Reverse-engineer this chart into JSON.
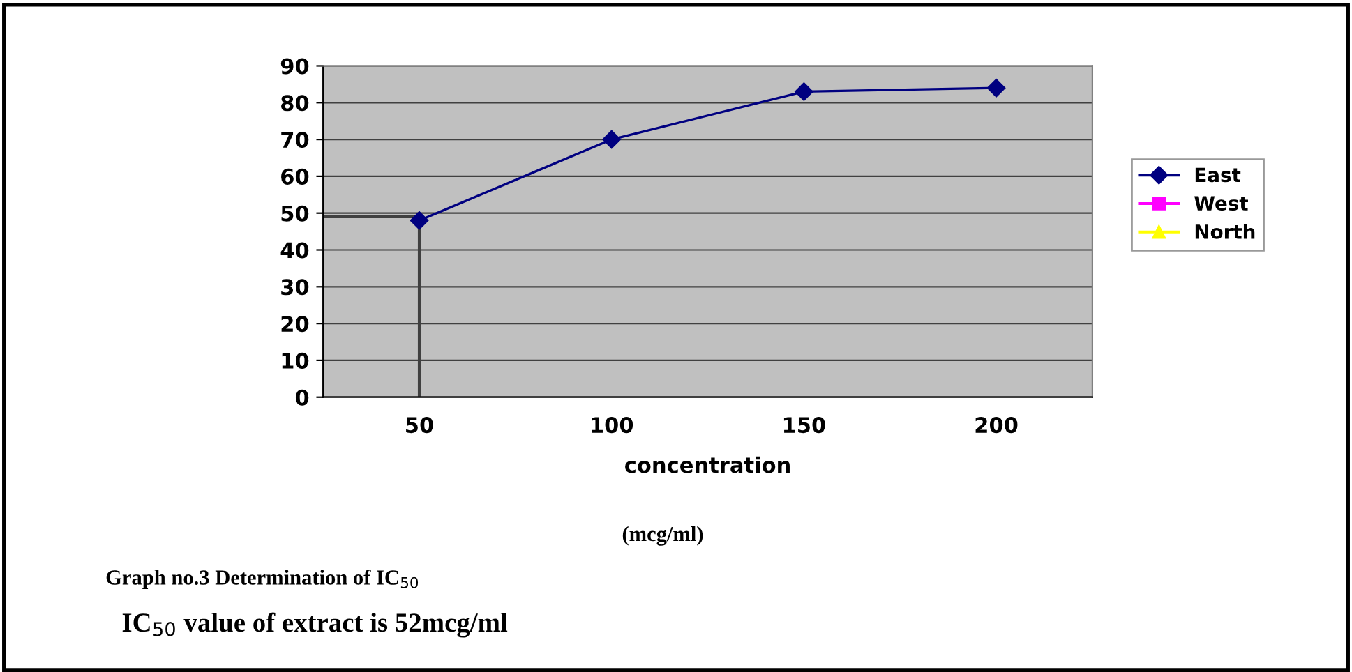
{
  "chart_data": {
    "type": "line",
    "xlabel": "concentration",
    "categories": [
      "50",
      "100",
      "150",
      "200"
    ],
    "series": [
      {
        "name": "East",
        "color": "#000080",
        "values": [
          48,
          70,
          83,
          84
        ],
        "marker": "diamond"
      },
      {
        "name": "West",
        "color": "#ff00ff",
        "values": [
          null,
          null,
          null,
          null
        ],
        "marker": "square"
      },
      {
        "name": "North",
        "color": "#ffff00",
        "values": [
          null,
          null,
          null,
          null
        ],
        "marker": "triangle"
      }
    ],
    "ylim": [
      0,
      90
    ],
    "yticks": [
      0,
      10,
      20,
      30,
      40,
      50,
      60,
      70,
      80,
      90
    ],
    "grid": "y",
    "legend": "right",
    "ref_lines": [
      {
        "axis": "y",
        "value": 49,
        "color": "#404040"
      },
      {
        "axis": "x",
        "value": "50",
        "color": "#404040"
      }
    ],
    "annotations": [
      "(mcg/ml)",
      "Graph no.3 Determination of IC$_{50}$",
      "IC$_{50}$ value of extract is 52mcg/ml"
    ]
  }
}
